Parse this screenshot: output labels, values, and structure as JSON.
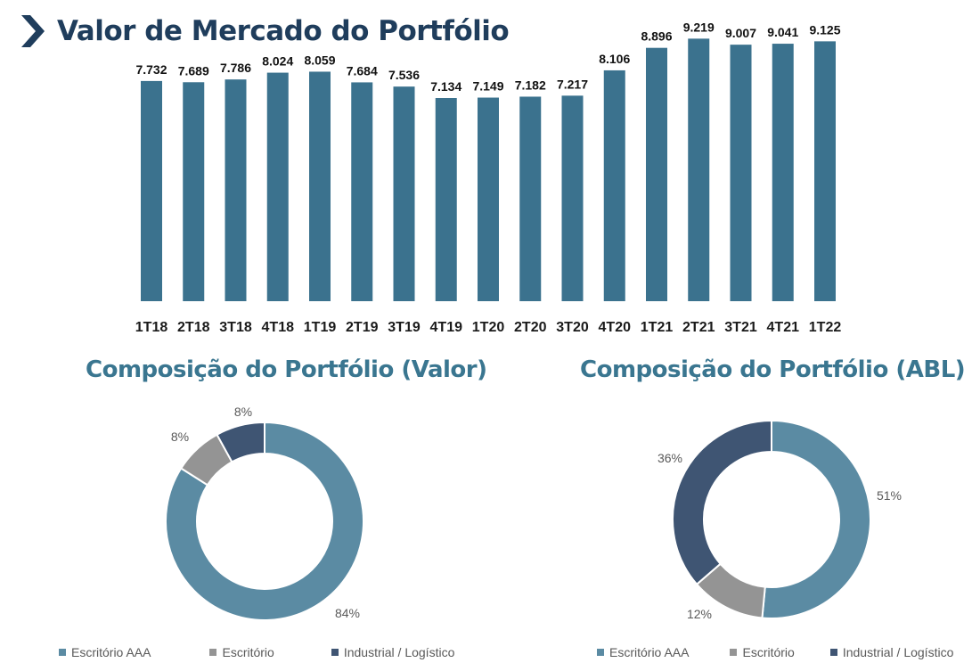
{
  "page": {
    "title": "Valor de Mercado do Portfólio",
    "icon": "chevron-right-icon",
    "colors": {
      "title": "#1f3d5c",
      "subtitle": "#3a7690",
      "bar": "#3b728e"
    }
  },
  "chart_data": [
    {
      "type": "bar",
      "title": "Valor de Mercado do Portfólio",
      "categories": [
        "1T18",
        "2T18",
        "3T18",
        "4T18",
        "1T19",
        "2T19",
        "3T19",
        "4T19",
        "1T20",
        "2T20",
        "3T20",
        "4T20",
        "1T21",
        "2T21",
        "3T21",
        "4T21",
        "1T22"
      ],
      "values": [
        7.732,
        7.689,
        7.786,
        8.024,
        8.059,
        7.684,
        7.536,
        7.134,
        7.149,
        7.182,
        7.217,
        8.106,
        8.896,
        9.219,
        9.007,
        9.041,
        9.125
      ],
      "labels": [
        "7.732",
        "7.689",
        "7.786",
        "8.024",
        "8.059",
        "7.684",
        "7.536",
        "7.134",
        "7.149",
        "7.182",
        "7.217",
        "8.106",
        "8.896",
        "9.219",
        "9.007",
        "9.041",
        "9.125"
      ],
      "ylim": [
        0,
        9.7
      ],
      "color": "#3b728e",
      "grid": false
    },
    {
      "type": "pie",
      "title": "Composição do Portfólio (Valor)",
      "categories": [
        "Escritório AAA",
        "Escritório",
        "Industrial / Logístico"
      ],
      "values": [
        84,
        8,
        8
      ],
      "labels": [
        "84%",
        "8%",
        "8%"
      ],
      "colors": [
        "#5b8ba3",
        "#949494",
        "#3f5573"
      ],
      "legend": "bottom"
    },
    {
      "type": "pie",
      "title": "Composição do Portfólio (ABL)",
      "categories": [
        "Escritório AAA",
        "Escritório",
        "Industrial / Logístico"
      ],
      "values": [
        51,
        12,
        36
      ],
      "labels": [
        "51%",
        "12%",
        "36%"
      ],
      "colors": [
        "#5b8ba3",
        "#949494",
        "#3f5573"
      ],
      "legend": "bottom"
    }
  ]
}
